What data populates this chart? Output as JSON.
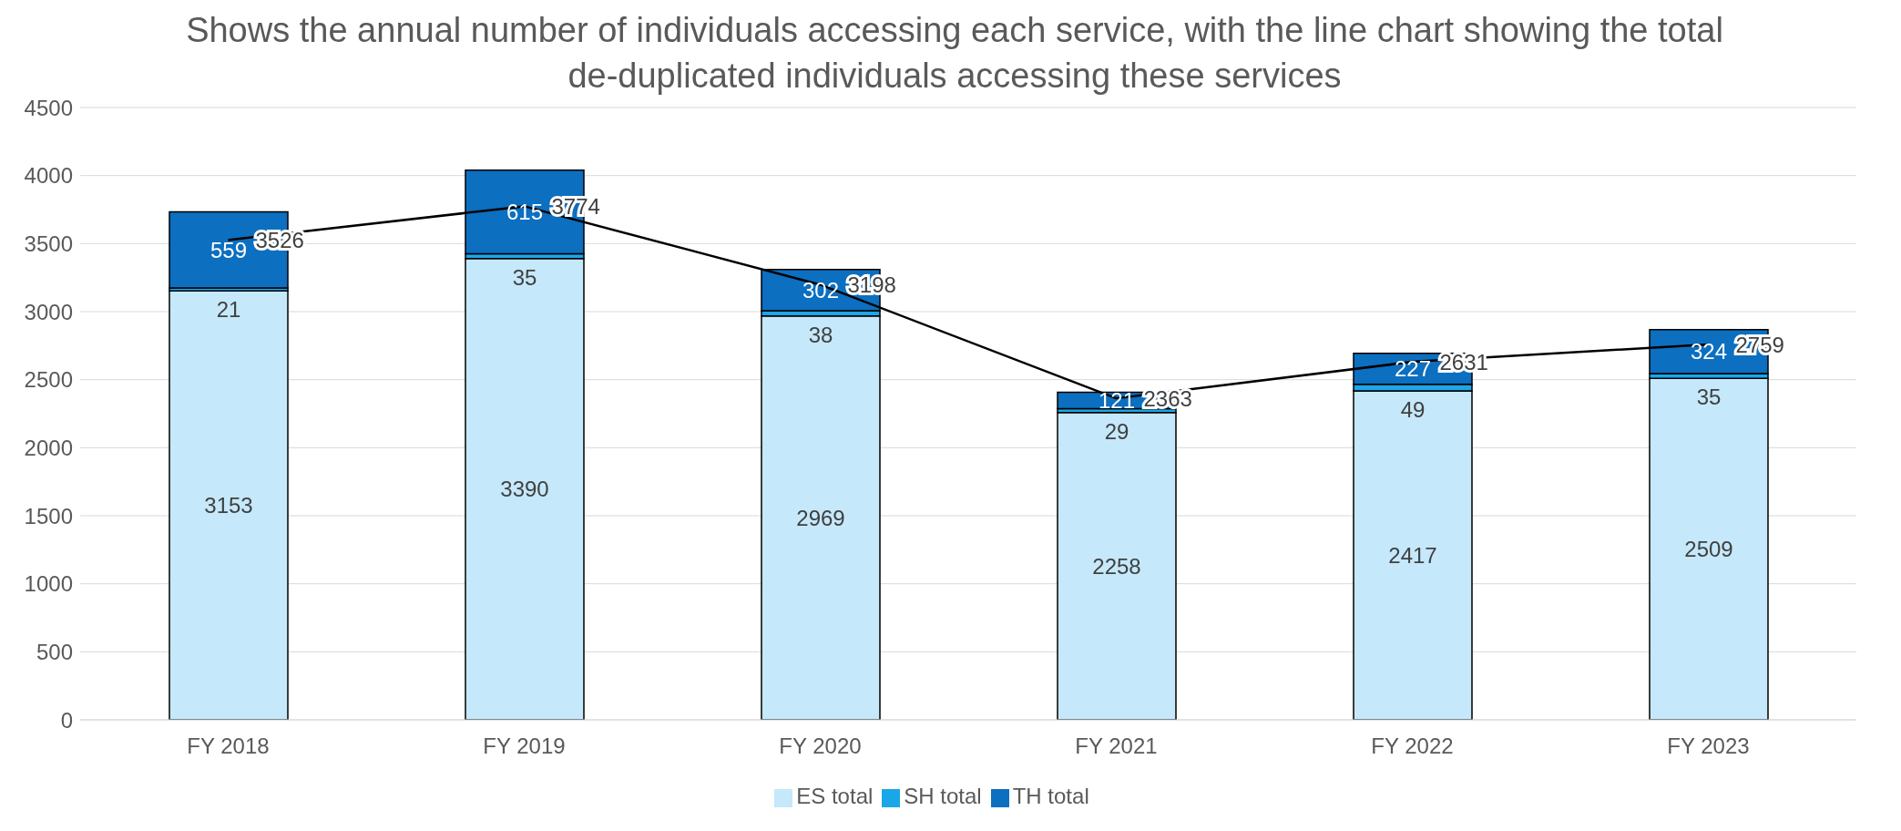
{
  "chart_data": {
    "type": "bar",
    "stacked": true,
    "title": "Shows the annual number of individuals accessing each service, with the line chart showing the total de-duplicated individuals accessing these services",
    "categories": [
      "FY 2018",
      "FY 2019",
      "FY 2020",
      "FY 2021",
      "FY 2022",
      "FY 2023"
    ],
    "series": [
      {
        "name": "ES total",
        "color": "#c5e8fb",
        "values": [
          3153,
          3390,
          2969,
          2258,
          2417,
          2509
        ]
      },
      {
        "name": "SH total",
        "color": "#1aa7e8",
        "values": [
          21,
          35,
          38,
          29,
          49,
          35
        ]
      },
      {
        "name": "TH total",
        "color": "#0c6fc0",
        "values": [
          559,
          615,
          302,
          121,
          227,
          324
        ]
      },
      {
        "type": "line",
        "color": "#000000",
        "values": [
          3526,
          3774,
          3198,
          2363,
          2631,
          2759
        ]
      }
    ],
    "ylim": [
      0,
      4500
    ],
    "yticks": [
      0,
      500,
      1000,
      1500,
      2000,
      2500,
      3000,
      3500,
      4000,
      4500
    ],
    "grid": "y",
    "legend": "bottom",
    "data_labels": true,
    "marker": "none"
  }
}
